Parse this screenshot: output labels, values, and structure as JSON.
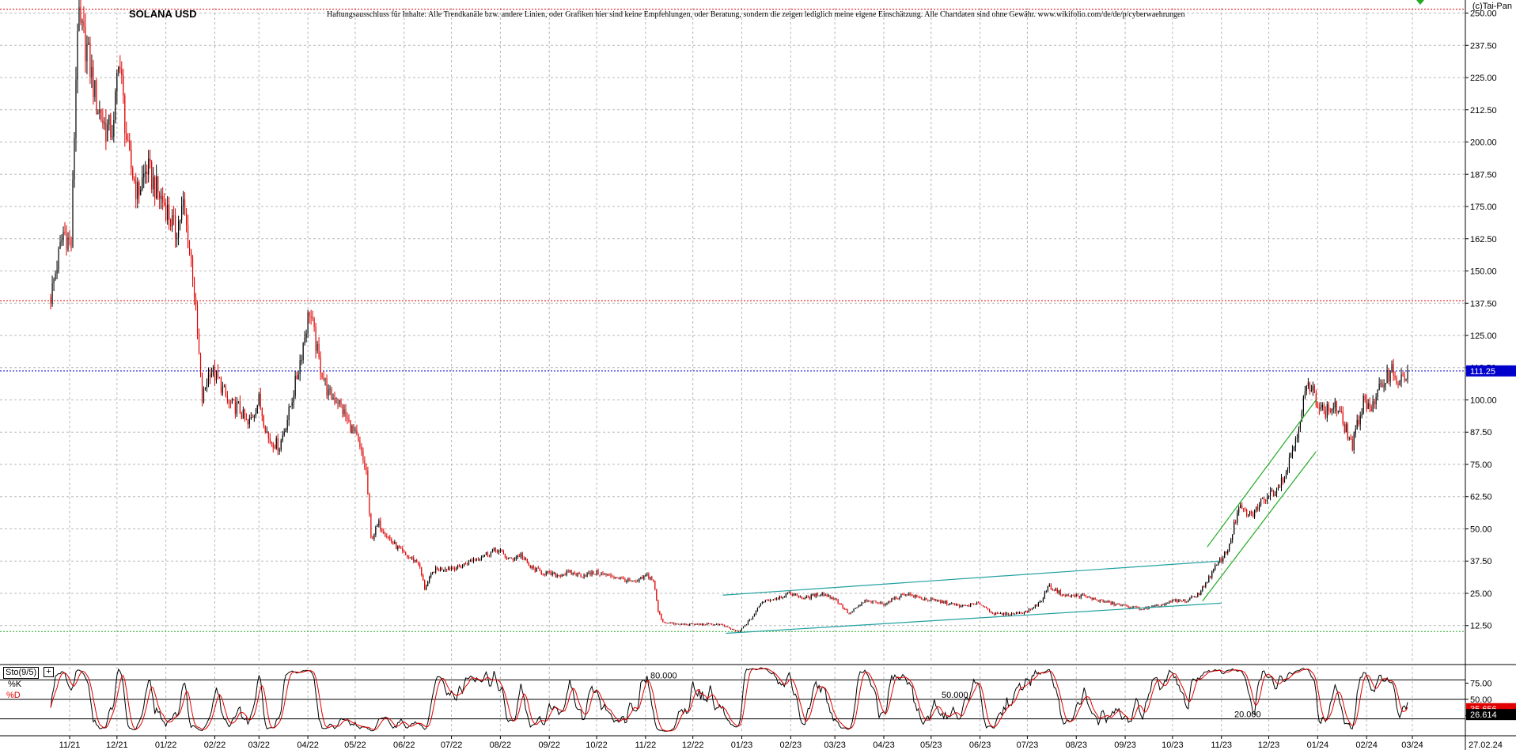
{
  "header": {
    "title": "SOLANA USD",
    "disclaimer": "Haftungsausschluss für Inhalte: Alle Trendkanäle bzw. andere Linien, oder Grafiken hier sind keine Empfehlungen, oder Beratung, sondern die zeigen lediglich meine eigene Einschätzung. Alle Chartdaten sind ohne Gewähr. www.wikifolio.com/de/de/p/cyberwaehrungen",
    "copyright": "(c)Tai-Pan"
  },
  "colors": {
    "up": "#000000",
    "down": "#e00000",
    "grid": "#b8b8b8",
    "channel": "#22a0a0",
    "trend": "#22aa22",
    "current_price_box": "#0000cc",
    "stoch_k": "#000000",
    "stoch_d": "#e00000"
  },
  "chart_data": [
    {
      "type": "candlestick",
      "title": "SOLANA USD",
      "x_ticks": [
        "11/21",
        "12/21",
        "01/22",
        "02/22",
        "03/22",
        "04/22",
        "05/22",
        "06/22",
        "07/22",
        "08/22",
        "09/22",
        "10/22",
        "11/22",
        "12/22",
        "01/23",
        "02/23",
        "03/23",
        "04/23",
        "05/23",
        "06/23",
        "07/23",
        "08/23",
        "09/23",
        "10/23",
        "11/23",
        "12/23",
        "01/24",
        "02/24",
        "03/24"
      ],
      "x_end_label": "27.02.24",
      "y_ticks": [
        "250.00",
        "237.50",
        "225.00",
        "212.50",
        "200.00",
        "187.50",
        "175.00",
        "162.50",
        "150.00",
        "137.50",
        "125.00",
        "112.50",
        "100.00",
        "87.50",
        "75.00",
        "62.50",
        "50.00",
        "37.50",
        "25.00",
        "12.50"
      ],
      "ylim": [
        -2,
        252
      ],
      "grid": true,
      "current_price_label": "111.25",
      "current_price": 111.25,
      "horizontal_lines": [
        {
          "value": 251.5,
          "style": "dotted",
          "color": "#e00000"
        },
        {
          "value": 138.5,
          "style": "dotted",
          "color": "#e00000"
        },
        {
          "value": 111.25,
          "style": "dotted",
          "color": "#0000cc"
        },
        {
          "value": 10.2,
          "style": "dotted",
          "color": "#22aa22"
        }
      ],
      "anchors": [
        [
          "2021-10-20",
          140
        ],
        [
          "2021-10-28",
          165
        ],
        [
          "2021-11-02",
          160
        ],
        [
          "2021-11-06",
          247
        ],
        [
          "2021-11-12",
          236
        ],
        [
          "2021-11-18",
          215
        ],
        [
          "2021-11-24",
          205
        ],
        [
          "2021-11-29",
          205
        ],
        [
          "2021-12-02",
          235
        ],
        [
          "2021-12-08",
          195
        ],
        [
          "2021-12-14",
          180
        ],
        [
          "2021-12-20",
          190
        ],
        [
          "2021-12-27",
          180
        ],
        [
          "2022-01-01",
          175
        ],
        [
          "2022-01-07",
          165
        ],
        [
          "2022-01-12",
          175
        ],
        [
          "2022-01-18",
          150
        ],
        [
          "2022-01-24",
          100
        ],
        [
          "2022-01-29",
          112
        ],
        [
          "2022-02-04",
          107
        ],
        [
          "2022-02-10",
          98
        ],
        [
          "2022-02-16",
          97
        ],
        [
          "2022-02-22",
          90
        ],
        [
          "2022-03-01",
          100
        ],
        [
          "2022-03-07",
          85
        ],
        [
          "2022-03-14",
          82
        ],
        [
          "2022-03-20",
          95
        ],
        [
          "2022-03-26",
          112
        ],
        [
          "2022-04-02",
          135
        ],
        [
          "2022-04-08",
          115
        ],
        [
          "2022-04-14",
          102
        ],
        [
          "2022-04-20",
          100
        ],
        [
          "2022-04-26",
          92
        ],
        [
          "2022-05-02",
          85
        ],
        [
          "2022-05-08",
          72
        ],
        [
          "2022-05-11",
          46
        ],
        [
          "2022-05-16",
          52
        ],
        [
          "2022-05-24",
          45
        ],
        [
          "2022-06-01",
          40
        ],
        [
          "2022-06-10",
          37
        ],
        [
          "2022-06-14",
          27
        ],
        [
          "2022-06-20",
          34
        ],
        [
          "2022-06-28",
          35
        ],
        [
          "2022-07-06",
          35
        ],
        [
          "2022-07-14",
          38
        ],
        [
          "2022-07-22",
          40
        ],
        [
          "2022-07-30",
          42
        ],
        [
          "2022-08-07",
          38
        ],
        [
          "2022-08-14",
          40
        ],
        [
          "2022-08-20",
          35
        ],
        [
          "2022-08-28",
          33
        ],
        [
          "2022-09-06",
          32
        ],
        [
          "2022-09-14",
          33
        ],
        [
          "2022-09-22",
          32
        ],
        [
          "2022-10-01",
          33
        ],
        [
          "2022-10-15",
          31
        ],
        [
          "2022-10-25",
          29
        ],
        [
          "2022-11-02",
          32
        ],
        [
          "2022-11-06",
          30
        ],
        [
          "2022-11-09",
          18
        ],
        [
          "2022-11-12",
          14
        ],
        [
          "2022-11-20",
          13
        ],
        [
          "2022-12-01",
          13
        ],
        [
          "2022-12-10",
          13
        ],
        [
          "2022-12-18",
          13
        ],
        [
          "2022-12-26",
          11
        ],
        [
          "2022-12-30",
          10
        ],
        [
          "2023-01-08",
          16
        ],
        [
          "2023-01-14",
          22
        ],
        [
          "2023-01-22",
          23
        ],
        [
          "2023-02-01",
          25
        ],
        [
          "2023-02-10",
          23
        ],
        [
          "2023-02-20",
          25
        ],
        [
          "2023-03-01",
          23
        ],
        [
          "2023-03-10",
          17
        ],
        [
          "2023-03-20",
          22
        ],
        [
          "2023-04-01",
          21
        ],
        [
          "2023-04-15",
          25
        ],
        [
          "2023-04-25",
          23
        ],
        [
          "2023-05-05",
          22
        ],
        [
          "2023-05-20",
          20
        ],
        [
          "2023-06-01",
          21
        ],
        [
          "2023-06-10",
          17
        ],
        [
          "2023-06-20",
          17
        ],
        [
          "2023-07-01",
          18
        ],
        [
          "2023-07-10",
          22
        ],
        [
          "2023-07-14",
          28
        ],
        [
          "2023-07-25",
          24
        ],
        [
          "2023-08-05",
          24
        ],
        [
          "2023-08-17",
          22
        ],
        [
          "2023-09-01",
          20
        ],
        [
          "2023-09-12",
          19
        ],
        [
          "2023-09-22",
          20
        ],
        [
          "2023-10-01",
          22
        ],
        [
          "2023-10-10",
          22
        ],
        [
          "2023-10-18",
          25
        ],
        [
          "2023-10-28",
          35
        ],
        [
          "2023-11-05",
          42
        ],
        [
          "2023-11-12",
          58
        ],
        [
          "2023-11-20",
          55
        ],
        [
          "2023-11-28",
          62
        ],
        [
          "2023-12-05",
          65
        ],
        [
          "2023-12-12",
          72
        ],
        [
          "2023-12-18",
          85
        ],
        [
          "2023-12-25",
          105
        ],
        [
          "2023-12-30",
          102
        ],
        [
          "2024-01-05",
          95
        ],
        [
          "2024-01-12",
          98
        ],
        [
          "2024-01-18",
          90
        ],
        [
          "2024-01-23",
          82
        ],
        [
          "2024-01-30",
          100
        ],
        [
          "2024-02-05",
          97
        ],
        [
          "2024-02-12",
          108
        ],
        [
          "2024-02-17",
          112
        ],
        [
          "2024-02-22",
          106
        ],
        [
          "2024-02-27",
          111
        ]
      ],
      "trendlines": [
        {
          "name": "channel-upper",
          "color": "#22a0a0",
          "points": [
            [
              "2022-12-20",
              24.3
            ],
            [
              "2023-10-31",
              37.5
            ]
          ]
        },
        {
          "name": "channel-lower",
          "color": "#22a0a0",
          "points": [
            [
              "2022-12-22",
              9.5
            ],
            [
              "2023-11-01",
              21.2
            ]
          ]
        },
        {
          "name": "trend-upper",
          "color": "#22aa22",
          "points": [
            [
              "2023-10-23",
              43
            ],
            [
              "2023-12-31",
              100
            ]
          ]
        },
        {
          "name": "trend-lower",
          "color": "#22aa22",
          "points": [
            [
              "2023-10-20",
              22
            ],
            [
              "2023-12-31",
              80
            ]
          ]
        }
      ]
    },
    {
      "type": "line",
      "title": "Sto(9/5)",
      "series": [
        {
          "name": "%K",
          "color": "#000000"
        },
        {
          "name": "%D",
          "color": "#e00000"
        }
      ],
      "y_ticks": [
        "75.00",
        "50.00",
        "25.00"
      ],
      "ylim": [
        0,
        100
      ],
      "levels": [
        {
          "value": 80,
          "label": "80.000"
        },
        {
          "value": 50,
          "label": "50.000"
        },
        {
          "value": 20,
          "label": "20.000"
        }
      ],
      "k_last_label": "26.614",
      "d_last_label": "35.656",
      "k_last": 26.614,
      "d_last": 35.656
    }
  ]
}
